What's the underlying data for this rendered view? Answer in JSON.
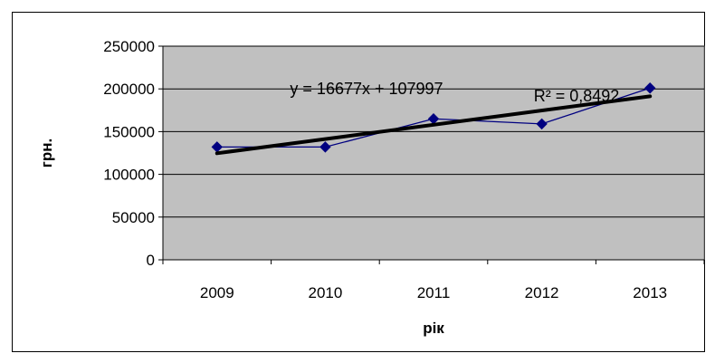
{
  "chart_data": {
    "type": "line",
    "xlabel": "рік",
    "ylabel": "грн.",
    "categories": [
      "2009",
      "2010",
      "2011",
      "2012",
      "2013"
    ],
    "series": [
      {
        "values": [
          132000,
          132000,
          165000,
          159000,
          201000
        ],
        "color": "#000080",
        "marker": "diamond"
      }
    ],
    "trendline": {
      "type": "linear",
      "equation": "y = 16677x + 107997",
      "r2_label": "R² = 0,8492",
      "slope": 16677,
      "intercept": 107997,
      "color": "#000000"
    },
    "ylim": [
      0,
      250000
    ],
    "yticks": [
      "0",
      "50000",
      "100000",
      "150000",
      "200000",
      "250000"
    ],
    "ytick_values": [
      0,
      50000,
      100000,
      150000,
      200000,
      250000
    ],
    "grid": true,
    "legend": "none",
    "plot_background": "#c0c0c0"
  }
}
